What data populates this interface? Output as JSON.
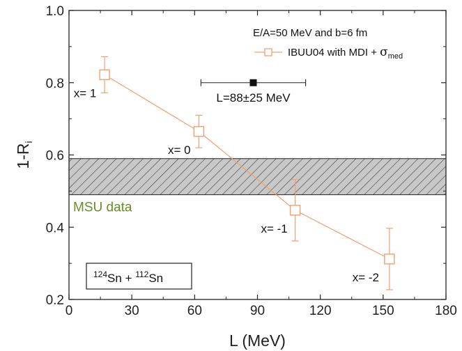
{
  "chart_data": {
    "type": "scatter",
    "xlabel": "L (MeV)",
    "ylabel_main": "1-R",
    "ylabel_sub": "i",
    "xlim": [
      0,
      180
    ],
    "ylim": [
      0.2,
      1.0
    ],
    "xticks": [
      0,
      30,
      60,
      90,
      120,
      150,
      180
    ],
    "yticks": [
      0.2,
      0.4,
      0.6,
      0.8,
      1.0
    ],
    "ytick_labels": [
      "0.2",
      "0.4",
      "0.6",
      "0.8",
      "1.0"
    ],
    "legend": {
      "placement": "top-right",
      "line1": "E/A=50 MeV and b=6 fm",
      "series_label_main": "IBUU04 with MDI + ",
      "series_label_sigma": "σ",
      "series_label_sub": "med"
    },
    "series": [
      {
        "name": "IBUU04 with MDI + σmed",
        "color": "#f0a070",
        "marker": "open-square",
        "points": [
          {
            "x": 17,
            "y": 0.822,
            "err": 0.05,
            "label": "x= 1"
          },
          {
            "x": 62,
            "y": 0.665,
            "err": 0.045,
            "label": "x= 0"
          },
          {
            "x": 108,
            "y": 0.447,
            "err": 0.085,
            "label": "x= -1"
          },
          {
            "x": 153,
            "y": 0.312,
            "err": 0.085,
            "label": "x= -2"
          }
        ]
      }
    ],
    "band": {
      "label": "MSU data",
      "ymin": 0.49,
      "ymax": 0.59,
      "color": "#6b8e23"
    },
    "constraint": {
      "x": 88,
      "y": 0.8,
      "xerr": 25,
      "label": "L=88±25 MeV"
    },
    "system_label": {
      "a1": "124",
      "e1": "Sn + ",
      "a2": "112",
      "e2": "Sn"
    }
  }
}
